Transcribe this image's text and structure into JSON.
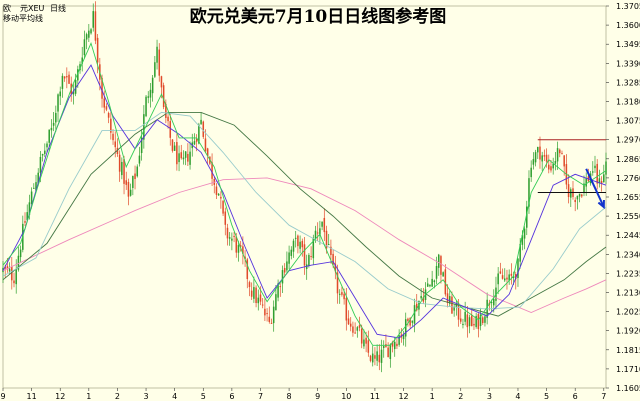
{
  "chart_data": {
    "type": "candlestick",
    "title": "欧元兑美元7月10日日线图参考图",
    "legend": [
      "欧",
      "元XEU",
      "日线",
      "移动平均线"
    ],
    "y_ticks": [
      "1.3705",
      "1.3600",
      "1.3495",
      "1.3390",
      "1.3285",
      "1.3180",
      "1.3075",
      "1.2970",
      "1.2865",
      "1.2760",
      "1.2655",
      "1.2550",
      "1.2445",
      "1.2340",
      "1.2235",
      "1.2130",
      "1.2025",
      "1.1920",
      "1.1815",
      "1.1710",
      "1.1605"
    ],
    "ylim": [
      1.1605,
      1.3705
    ],
    "x_ticks": [
      "9",
      "11",
      "12",
      "1",
      "2",
      "3",
      "4",
      "5",
      "6",
      "7",
      "8",
      "9",
      "10",
      "11",
      "12",
      "1",
      "2",
      "3",
      "4",
      "5",
      "6",
      "7"
    ],
    "x_tick_index": [
      0,
      13,
      26,
      39,
      52,
      65,
      78,
      91,
      104,
      117,
      130,
      143,
      156,
      169,
      182,
      195,
      208,
      221,
      234,
      247,
      260,
      273
    ],
    "price_path": [
      [
        0,
        1.225
      ],
      [
        5,
        1.222
      ],
      [
        10,
        1.252
      ],
      [
        16,
        1.281
      ],
      [
        22,
        1.302
      ],
      [
        27,
        1.334
      ],
      [
        32,
        1.322
      ],
      [
        37,
        1.352
      ],
      [
        41,
        1.365
      ],
      [
        45,
        1.322
      ],
      [
        50,
        1.296
      ],
      [
        55,
        1.276
      ],
      [
        57,
        1.264
      ],
      [
        61,
        1.282
      ],
      [
        65,
        1.318
      ],
      [
        70,
        1.345
      ],
      [
        73,
        1.312
      ],
      [
        77,
        1.293
      ],
      [
        81,
        1.282
      ],
      [
        85,
        1.291
      ],
      [
        90,
        1.307
      ],
      [
        94,
        1.282
      ],
      [
        98,
        1.268
      ],
      [
        101,
        1.246
      ],
      [
        105,
        1.241
      ],
      [
        109,
        1.231
      ],
      [
        113,
        1.214
      ],
      [
        117,
        1.206
      ],
      [
        121,
        1.196
      ],
      [
        125,
        1.217
      ],
      [
        129,
        1.232
      ],
      [
        134,
        1.242
      ],
      [
        138,
        1.226
      ],
      [
        142,
        1.246
      ],
      [
        145,
        1.252
      ],
      [
        149,
        1.229
      ],
      [
        153,
        1.211
      ],
      [
        157,
        1.198
      ],
      [
        161,
        1.192
      ],
      [
        165,
        1.181
      ],
      [
        169,
        1.175
      ],
      [
        174,
        1.181
      ],
      [
        178,
        1.187
      ],
      [
        182,
        1.192
      ],
      [
        186,
        1.202
      ],
      [
        190,
        1.211
      ],
      [
        194,
        1.217
      ],
      [
        198,
        1.232
      ],
      [
        202,
        1.208
      ],
      [
        206,
        1.202
      ],
      [
        210,
        1.198
      ],
      [
        214,
        1.194
      ],
      [
        218,
        1.201
      ],
      [
        222,
        1.212
      ],
      [
        226,
        1.221
      ],
      [
        230,
        1.219
      ],
      [
        234,
        1.227
      ],
      [
        237,
        1.252
      ],
      [
        240,
        1.286
      ],
      [
        244,
        1.291
      ],
      [
        248,
        1.281
      ],
      [
        251,
        1.287
      ],
      [
        253,
        1.292
      ],
      [
        256,
        1.271
      ],
      [
        259,
        1.266
      ],
      [
        262,
        1.268
      ],
      [
        265,
        1.274
      ],
      [
        268,
        1.281
      ],
      [
        271,
        1.272
      ],
      [
        274,
        1.284
      ]
    ],
    "ma_fast_path": [
      [
        0,
        1.228
      ],
      [
        8,
        1.24
      ],
      [
        16,
        1.272
      ],
      [
        24,
        1.302
      ],
      [
        32,
        1.328
      ],
      [
        40,
        1.35
      ],
      [
        48,
        1.318
      ],
      [
        56,
        1.282
      ],
      [
        64,
        1.302
      ],
      [
        72,
        1.322
      ],
      [
        80,
        1.298
      ],
      [
        88,
        1.298
      ],
      [
        96,
        1.282
      ],
      [
        104,
        1.25
      ],
      [
        112,
        1.225
      ],
      [
        120,
        1.208
      ],
      [
        128,
        1.222
      ],
      [
        136,
        1.235
      ],
      [
        144,
        1.245
      ],
      [
        152,
        1.222
      ],
      [
        160,
        1.2
      ],
      [
        168,
        1.184
      ],
      [
        176,
        1.184
      ],
      [
        184,
        1.196
      ],
      [
        192,
        1.212
      ],
      [
        200,
        1.22
      ],
      [
        208,
        1.205
      ],
      [
        216,
        1.198
      ],
      [
        224,
        1.212
      ],
      [
        232,
        1.222
      ],
      [
        240,
        1.268
      ],
      [
        248,
        1.286
      ],
      [
        256,
        1.278
      ],
      [
        264,
        1.272
      ],
      [
        274,
        1.28
      ]
    ],
    "ma_mid_path": [
      [
        0,
        1.225
      ],
      [
        10,
        1.248
      ],
      [
        20,
        1.29
      ],
      [
        30,
        1.32
      ],
      [
        40,
        1.338
      ],
      [
        50,
        1.31
      ],
      [
        60,
        1.292
      ],
      [
        70,
        1.308
      ],
      [
        80,
        1.3
      ],
      [
        90,
        1.29
      ],
      [
        100,
        1.268
      ],
      [
        110,
        1.238
      ],
      [
        120,
        1.21
      ],
      [
        130,
        1.225
      ],
      [
        140,
        1.228
      ],
      [
        150,
        1.23
      ],
      [
        160,
        1.21
      ],
      [
        170,
        1.19
      ],
      [
        180,
        1.188
      ],
      [
        190,
        1.198
      ],
      [
        200,
        1.21
      ],
      [
        210,
        1.205
      ],
      [
        220,
        1.2
      ],
      [
        230,
        1.212
      ],
      [
        240,
        1.242
      ],
      [
        250,
        1.272
      ],
      [
        260,
        1.278
      ],
      [
        274,
        1.272
      ]
    ],
    "ma_slow_path": [
      [
        0,
        1.222
      ],
      [
        15,
        1.232
      ],
      [
        30,
        1.27
      ],
      [
        45,
        1.302
      ],
      [
        60,
        1.302
      ],
      [
        72,
        1.312
      ],
      [
        85,
        1.31
      ],
      [
        100,
        1.29
      ],
      [
        115,
        1.268
      ],
      [
        130,
        1.25
      ],
      [
        145,
        1.24
      ],
      [
        160,
        1.23
      ],
      [
        175,
        1.215
      ],
      [
        190,
        1.207
      ],
      [
        205,
        1.205
      ],
      [
        220,
        1.204
      ],
      [
        235,
        1.205
      ],
      [
        250,
        1.226
      ],
      [
        262,
        1.248
      ],
      [
        274,
        1.26
      ]
    ],
    "ma_longer_path": [
      [
        0,
        1.22
      ],
      [
        20,
        1.24
      ],
      [
        40,
        1.278
      ],
      [
        60,
        1.3
      ],
      [
        75,
        1.312
      ],
      [
        90,
        1.312
      ],
      [
        105,
        1.305
      ],
      [
        120,
        1.288
      ],
      [
        135,
        1.27
      ],
      [
        150,
        1.255
      ],
      [
        165,
        1.238
      ],
      [
        180,
        1.222
      ],
      [
        195,
        1.21
      ],
      [
        210,
        1.205
      ],
      [
        225,
        1.2
      ],
      [
        240,
        1.21
      ],
      [
        255,
        1.22
      ],
      [
        265,
        1.23
      ],
      [
        274,
        1.238
      ]
    ],
    "ma_longest_path": [
      [
        0,
        1.225
      ],
      [
        30,
        1.242
      ],
      [
        60,
        1.258
      ],
      [
        80,
        1.268
      ],
      [
        100,
        1.275
      ],
      [
        120,
        1.276
      ],
      [
        140,
        1.27
      ],
      [
        160,
        1.258
      ],
      [
        180,
        1.242
      ],
      [
        200,
        1.228
      ],
      [
        220,
        1.212
      ],
      [
        240,
        1.202
      ],
      [
        255,
        1.21
      ],
      [
        265,
        1.215
      ],
      [
        274,
        1.22
      ]
    ],
    "resistance_level": 1.297,
    "resistance_x_range": [
      243,
      280
    ],
    "support_level": 1.268,
    "support_x_range": [
      243,
      280
    ],
    "arrow_from": [
      265,
      1.281
    ],
    "arrow_to": [
      273,
      1.26
    ],
    "colors": {
      "background": "#ffffe8",
      "candle_up": "#2f9e2f",
      "candle_down": "#e04a2a",
      "ma_fast": "#33cc55",
      "ma_mid": "#5533dd",
      "ma_slow": "#99cccc",
      "ma_longer": "#447744",
      "ma_longest": "#ee88bb",
      "resistance_line": "#aa2222",
      "support_line": "#111111",
      "arrow": "#1133cc",
      "grid": "#cccc99"
    }
  }
}
